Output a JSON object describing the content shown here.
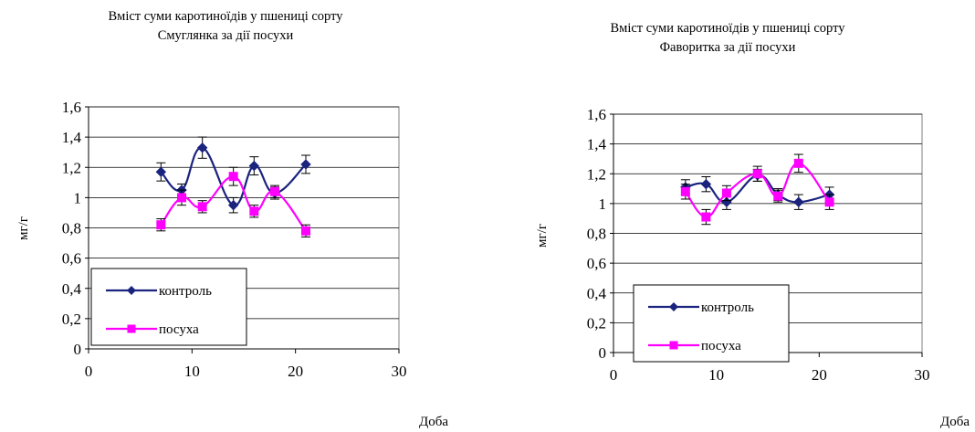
{
  "chart_data": [
    {
      "type": "line",
      "title": "Вміст суми каротиноїдів у пшениці сорту",
      "subtitle": "Смуглянка за дії посухи",
      "xlabel": "Доба",
      "ylabel": "мг/г",
      "xlim": [
        0,
        30
      ],
      "ylim": [
        0,
        1.6
      ],
      "xticks": [
        "0",
        "10",
        "20",
        "30"
      ],
      "yticks": [
        "0",
        "0,2",
        "0,4",
        "0,6",
        "0,8",
        "1",
        "1,2",
        "1,4",
        "1,6"
      ],
      "grid": "horizontal",
      "legend_position": "lower-left",
      "series": [
        {
          "name": "контроль",
          "color": "#1a237e",
          "marker": "diamond",
          "x": [
            7,
            9,
            11,
            14,
            16,
            18,
            21
          ],
          "y": [
            1.17,
            1.05,
            1.33,
            0.95,
            1.21,
            1.03,
            1.22
          ],
          "err": [
            0.06,
            0.04,
            0.07,
            0.05,
            0.06,
            0.04,
            0.06
          ]
        },
        {
          "name": "посуха",
          "color": "#ff00ff",
          "marker": "square",
          "x": [
            7,
            9,
            11,
            14,
            16,
            18,
            21
          ],
          "y": [
            0.82,
            1.0,
            0.94,
            1.14,
            0.91,
            1.04,
            0.78
          ],
          "err": [
            0.04,
            0.05,
            0.04,
            0.06,
            0.04,
            0.04,
            0.04
          ]
        }
      ]
    },
    {
      "type": "line",
      "title": "Вміст суми каротиноїдів у пшениці сорту",
      "subtitle": "Фаворитка за дії посухи",
      "xlabel": "Доба",
      "ylabel": "мг/г",
      "xlim": [
        0,
        30
      ],
      "ylim": [
        0,
        1.6
      ],
      "xticks": [
        "0",
        "10",
        "20",
        "30"
      ],
      "yticks": [
        "0",
        "0,2",
        "0,4",
        "0,6",
        "0,8",
        "1",
        "1,2",
        "1,4",
        "1,6"
      ],
      "grid": "horizontal",
      "legend_position": "lower-left",
      "series": [
        {
          "name": "контроль",
          "color": "#1a237e",
          "marker": "diamond",
          "x": [
            7,
            9,
            11,
            14,
            16,
            18,
            21
          ],
          "y": [
            1.11,
            1.13,
            1.01,
            1.19,
            1.06,
            1.01,
            1.06
          ],
          "err": [
            0.05,
            0.05,
            0.05,
            0.04,
            0.04,
            0.05,
            0.05
          ]
        },
        {
          "name": "посуха",
          "color": "#ff00ff",
          "marker": "square",
          "x": [
            7,
            9,
            11,
            14,
            16,
            18,
            21
          ],
          "y": [
            1.08,
            0.91,
            1.07,
            1.2,
            1.05,
            1.27,
            1.01
          ],
          "err": [
            0.05,
            0.05,
            0.05,
            0.05,
            0.04,
            0.06,
            0.05
          ]
        }
      ]
    }
  ]
}
